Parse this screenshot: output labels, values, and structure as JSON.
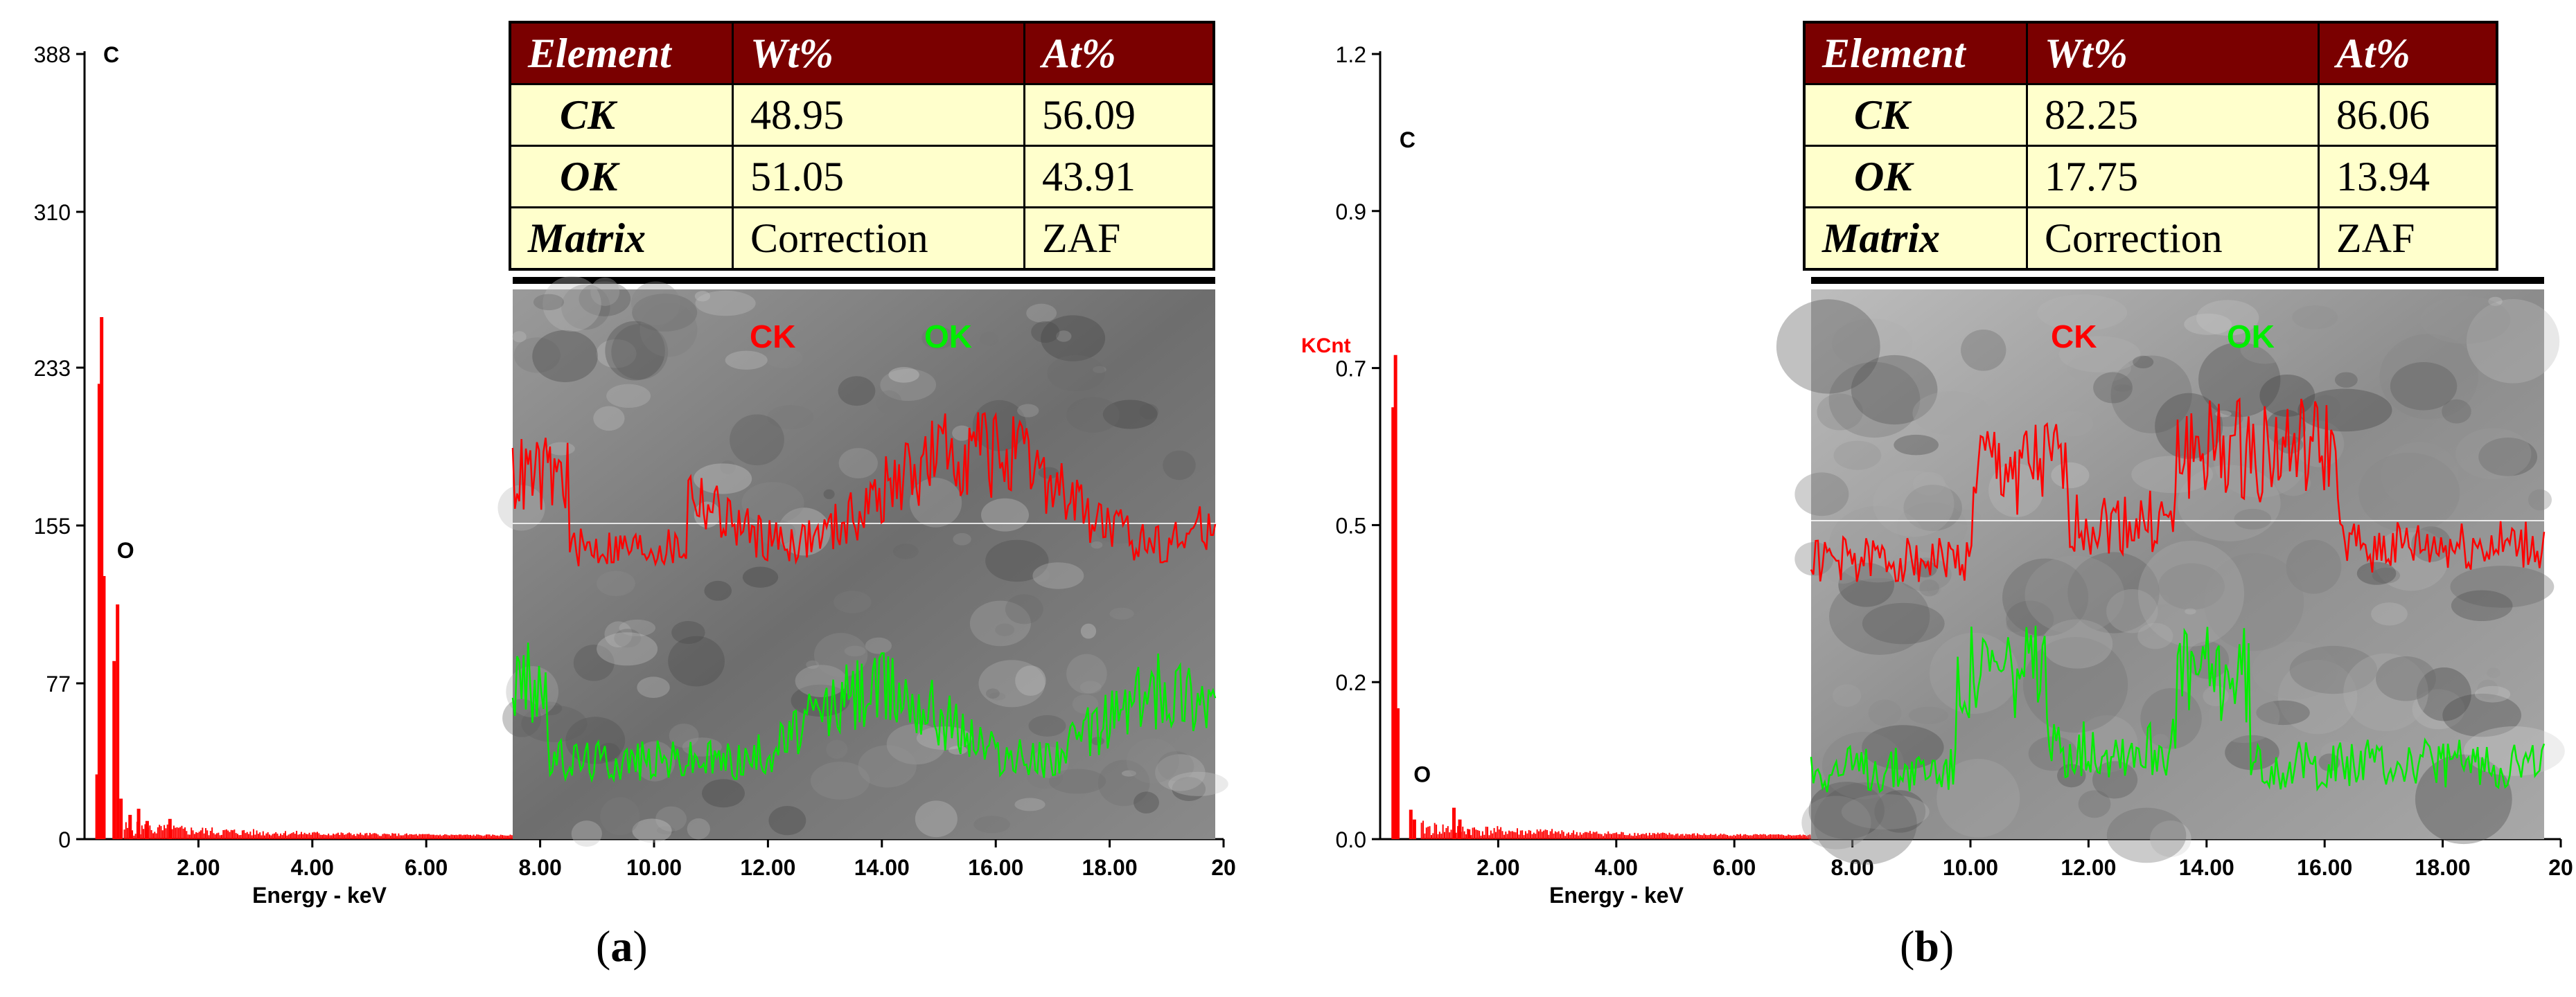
{
  "colors": {
    "spectrum": "#ff0000",
    "ck_line": "#ff0000",
    "ok_line": "#00ee00",
    "table_header": "#7a0000",
    "table_body": "#ffffcc"
  },
  "chart_data": [
    {
      "type": "bar",
      "panel": "a",
      "xlabel": "Energy - keV",
      "ylabel": "",
      "xlim": [
        0,
        20
      ],
      "ylim": [
        0,
        388
      ],
      "yticks": [
        "0",
        "77",
        "155",
        "233",
        "310",
        "388"
      ],
      "ytick_values": [
        0,
        77,
        155,
        233,
        310,
        388
      ],
      "xticks": [
        "2.00",
        "4.00",
        "6.00",
        "8.00",
        "10.00",
        "12.00",
        "14.00",
        "16.00",
        "18.00",
        "20"
      ],
      "xtick_values": [
        2,
        4,
        6,
        8,
        10,
        12,
        14,
        16,
        18,
        20
      ],
      "peak_labels": [
        {
          "text": "C",
          "x": 0.28,
          "y": 388
        },
        {
          "text": "O",
          "x": 0.52,
          "y": 143
        }
      ],
      "spectrum_peaks": [
        {
          "x": 0.22,
          "y": 32
        },
        {
          "x": 0.26,
          "y": 225
        },
        {
          "x": 0.3,
          "y": 258
        },
        {
          "x": 0.34,
          "y": 130
        },
        {
          "x": 0.52,
          "y": 88
        },
        {
          "x": 0.58,
          "y": 116
        },
        {
          "x": 0.64,
          "y": 20
        },
        {
          "x": 0.8,
          "y": 12
        },
        {
          "x": 0.95,
          "y": 15
        },
        {
          "x": 1.1,
          "y": 9
        },
        {
          "x": 1.5,
          "y": 10
        }
      ],
      "table": {
        "headers": [
          "Element",
          "Wt%",
          "At%"
        ],
        "rows": [
          [
            "CK",
            "48.95",
            "56.09"
          ],
          [
            "OK",
            "51.05",
            "43.91"
          ],
          [
            "Matrix",
            "Correction",
            "ZAF"
          ]
        ]
      },
      "map_labels": {
        "ck": "CK",
        "ok": "OK"
      },
      "caption_open": "(",
      "caption_letter": "a",
      "caption_close": ")"
    },
    {
      "type": "bar",
      "panel": "b",
      "xlabel": "Energy - keV",
      "ylabel": "KCnt",
      "xlim": [
        0,
        20
      ],
      "ylim": [
        0,
        1.2
      ],
      "yticks": [
        "0.0",
        "0.2",
        "0.5",
        "0.7",
        "0.9",
        "1.2"
      ],
      "ytick_values": [
        0,
        0.24,
        0.48,
        0.72,
        0.96,
        1.2
      ],
      "xticks": [
        "2.00",
        "4.00",
        "6.00",
        "8.00",
        "10.00",
        "12.00",
        "14.00",
        "16.00",
        "18.00",
        "20"
      ],
      "xtick_values": [
        2,
        4,
        6,
        8,
        10,
        12,
        14,
        16,
        18,
        20
      ],
      "peak_labels": [
        {
          "text": "C",
          "x": 0.28,
          "y": 1.07
        },
        {
          "text": "O",
          "x": 0.52,
          "y": 0.1
        }
      ],
      "spectrum_peaks": [
        {
          "x": 0.22,
          "y": 0.66
        },
        {
          "x": 0.26,
          "y": 0.74
        },
        {
          "x": 0.3,
          "y": 0.2
        },
        {
          "x": 0.52,
          "y": 0.045
        },
        {
          "x": 0.58,
          "y": 0.03
        },
        {
          "x": 1.25,
          "y": 0.048
        },
        {
          "x": 1.35,
          "y": 0.03
        },
        {
          "x": 1.5,
          "y": 0.015
        }
      ],
      "table": {
        "headers": [
          "Element",
          "Wt%",
          "At%"
        ],
        "rows": [
          [
            "CK",
            "82.25",
            "86.06"
          ],
          [
            "OK",
            "17.75",
            "13.94"
          ],
          [
            "Matrix",
            "Correction",
            "ZAF"
          ]
        ]
      },
      "map_labels": {
        "ck": "CK",
        "ok": "OK"
      },
      "caption_open": "(",
      "caption_letter": "b",
      "caption_close": ")"
    }
  ]
}
